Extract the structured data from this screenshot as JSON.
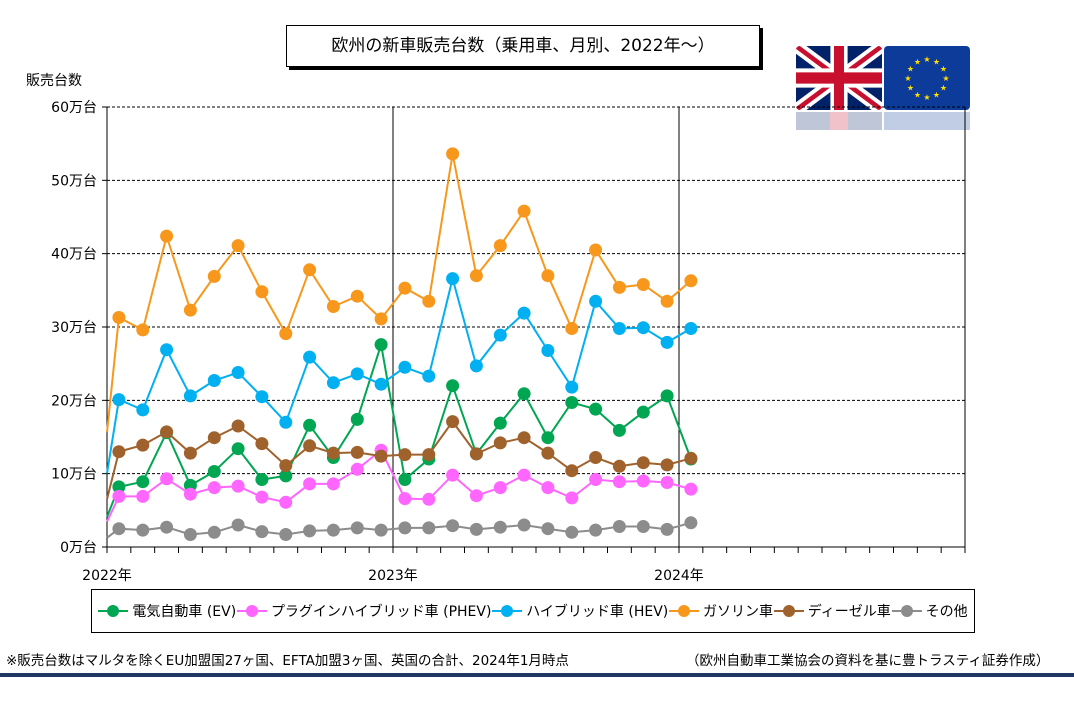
{
  "title": "欧州の新車販売台数（乗用車、月別、2022年～）",
  "y_unit_label": "販売台数",
  "notes": {
    "left": "※販売台数はマルタを除くEU加盟国27ヶ国、EFTA加盟3ヶ国、英国の合計、2024年1月時点",
    "right": "（欧州自動車工業協会の資料を基に豊トラスティ証券作成）"
  },
  "flags": {
    "left": "uk-flag",
    "right": "eu-flag"
  },
  "chart_data": {
    "type": "line",
    "x_tick_labels": [
      "2022年",
      "2023年",
      "2024年"
    ],
    "y_tick_labels": [
      "0万台",
      "10万台",
      "20万台",
      "30万台",
      "40万台",
      "50万台",
      "60万台"
    ],
    "ylim": [
      0,
      60
    ],
    "ylabel": "販売台数",
    "grid": true,
    "legend_position": "bottom",
    "months": [
      "2022-01",
      "2022-02",
      "2022-03",
      "2022-04",
      "2022-05",
      "2022-06",
      "2022-07",
      "2022-08",
      "2022-09",
      "2022-10",
      "2022-11",
      "2022-12",
      "2023-01",
      "2023-02",
      "2023-03",
      "2023-04",
      "2023-05",
      "2023-06",
      "2023-07",
      "2023-08",
      "2023-09",
      "2023-10",
      "2023-11",
      "2023-12",
      "2024-01"
    ],
    "series": [
      {
        "name": "電気自動車 (EV)",
        "color": "#00a651",
        "values": [
          8.2,
          8.9,
          15.6,
          8.4,
          10.3,
          13.4,
          9.2,
          9.7,
          16.6,
          12.2,
          17.4,
          27.6,
          9.2,
          12.0,
          22.0,
          12.7,
          16.9,
          20.9,
          14.9,
          19.7,
          18.8,
          15.9,
          18.4,
          20.6,
          12.0
        ]
      },
      {
        "name": "プラグインハイブリッド車 (PHEV)",
        "color": "#ff66ff",
        "values": [
          6.9,
          6.9,
          9.3,
          7.2,
          8.1,
          8.3,
          6.8,
          6.1,
          8.6,
          8.6,
          10.6,
          13.2,
          6.6,
          6.5,
          9.8,
          7.0,
          8.1,
          9.8,
          8.1,
          6.7,
          9.2,
          8.9,
          9.0,
          8.8,
          7.9
        ]
      },
      {
        "name": "ハイブリッド車 (HEV)",
        "color": "#00b0f0",
        "values": [
          20.1,
          18.7,
          26.9,
          20.6,
          22.7,
          23.8,
          20.5,
          17.0,
          25.9,
          22.4,
          23.6,
          22.2,
          24.5,
          23.3,
          36.6,
          24.7,
          28.9,
          31.9,
          26.8,
          21.8,
          33.5,
          29.8,
          29.9,
          27.9,
          29.8
        ]
      },
      {
        "name": "ガソリン車",
        "color": "#f7981d",
        "values": [
          31.3,
          29.6,
          42.4,
          32.3,
          36.9,
          41.1,
          34.8,
          29.1,
          37.8,
          32.8,
          34.2,
          31.1,
          35.3,
          33.5,
          53.6,
          37.0,
          41.1,
          45.8,
          37.0,
          29.8,
          40.5,
          35.4,
          35.8,
          33.5,
          36.3
        ]
      },
      {
        "name": "ディーゼル車",
        "color": "#a0622d",
        "values": [
          13.0,
          13.9,
          15.7,
          12.8,
          14.9,
          16.5,
          14.1,
          11.1,
          13.8,
          12.8,
          12.9,
          12.4,
          12.6,
          12.6,
          17.1,
          12.7,
          14.2,
          14.9,
          12.8,
          10.4,
          12.2,
          11.0,
          11.5,
          11.2,
          12.1
        ]
      },
      {
        "name": "その他",
        "color": "#8c8c8c",
        "values": [
          2.5,
          2.3,
          2.7,
          1.7,
          2.0,
          3.0,
          2.1,
          1.7,
          2.2,
          2.3,
          2.6,
          2.3,
          2.6,
          2.6,
          2.9,
          2.4,
          2.7,
          3.0,
          2.5,
          2.0,
          2.3,
          2.8,
          2.8,
          2.4,
          3.3
        ]
      }
    ]
  }
}
